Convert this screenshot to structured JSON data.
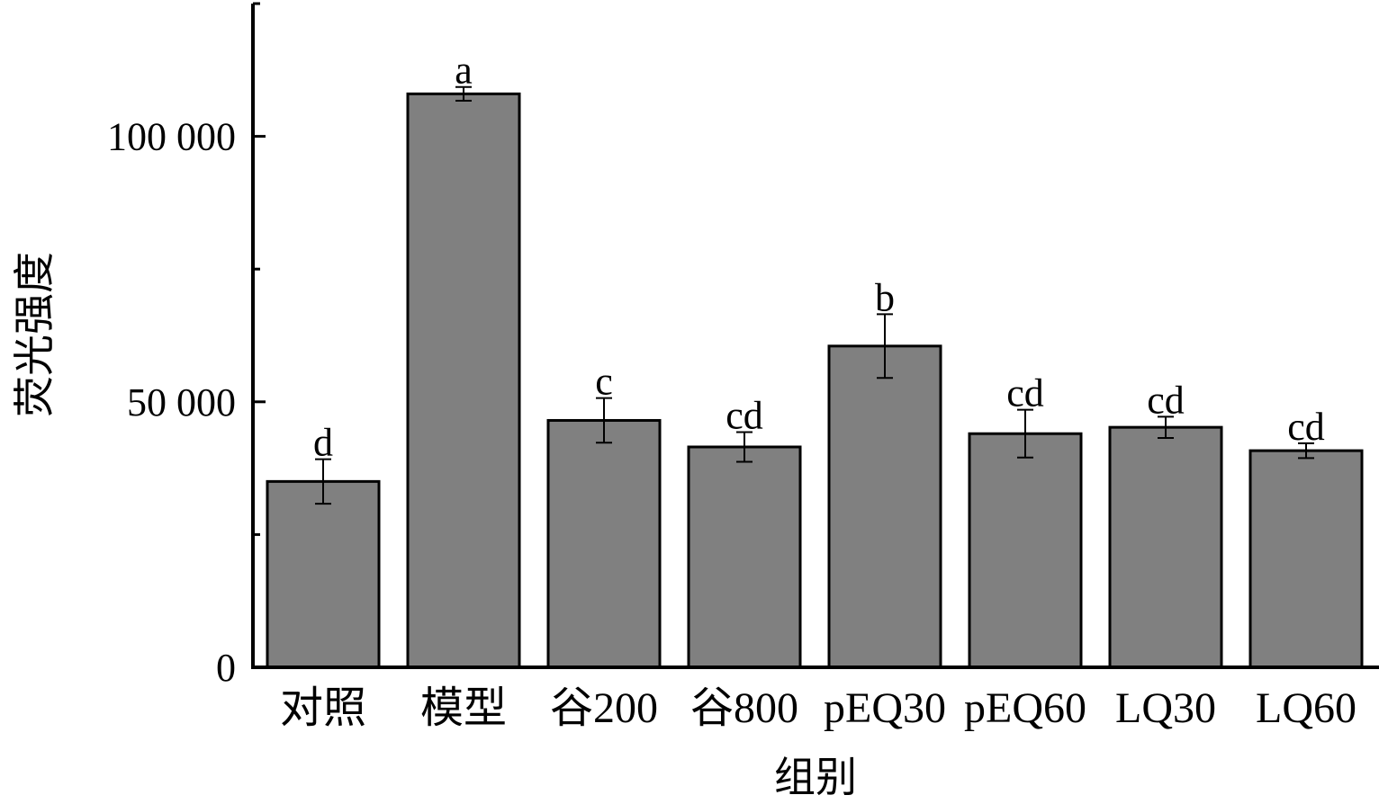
{
  "chart_data": {
    "type": "bar",
    "title": "",
    "xlabel": "组别",
    "ylabel": "荧光强度",
    "categories": [
      "对照",
      "模型",
      "谷200",
      "谷800",
      "pEQ30",
      "pEQ60",
      "LQ30",
      "LQ60"
    ],
    "values": [
      35000,
      108000,
      46500,
      41500,
      60500,
      44000,
      45200,
      40800
    ],
    "errors": [
      4200,
      1300,
      4200,
      2800,
      6000,
      4500,
      2000,
      1400
    ],
    "significance": [
      "d",
      "a",
      "c",
      "cd",
      "b",
      "cd",
      "cd",
      "cd"
    ],
    "ylim": [
      0,
      125000
    ],
    "yticks": [
      0,
      50000,
      100000
    ],
    "ytick_labels": [
      "0",
      "50 000",
      "100 000"
    ],
    "minor_yticks": [
      25000,
      75000,
      125000
    ],
    "grid": false,
    "legend": "none",
    "bar_color": "#808080"
  }
}
